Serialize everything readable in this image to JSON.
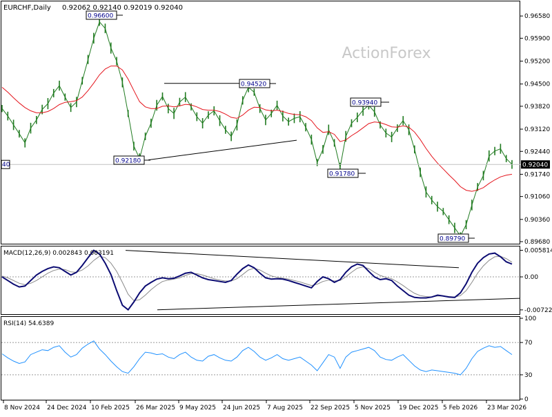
{
  "header": {
    "symbol": "EURCHF,Daily",
    "ohlc": "0.92062 0.92140 0.92019 0.92040",
    "watermark": "ActionForex"
  },
  "chart_data": [
    {
      "type": "line",
      "role": "price",
      "title": "EURCHF,Daily",
      "ylim": [
        0.8968,
        0.969
      ],
      "y_ticks": [
        "0.96580",
        "0.95900",
        "0.95200",
        "0.94500",
        "0.93820",
        "0.93120",
        "0.92440",
        "0.91740",
        "0.91060",
        "0.90360",
        "0.89680"
      ],
      "x_ticks": [
        "8 Nov 2024",
        "24 Dec 2024",
        "10 Feb 2025",
        "26 Mar 2025",
        "9 May 2025",
        "24 Jun 2025",
        "7 Aug 2025",
        "22 Sep 2025",
        "5 Nov 2025",
        "19 Dec 2025",
        "5 Feb 2026",
        "23 Mar 2026"
      ],
      "last_price_label": "0.92040",
      "left_price_label": "40",
      "annotations": [
        {
          "text": "0.96600",
          "x": "Feb 2025",
          "y": 0.966
        },
        {
          "text": "0.92180",
          "x": "Apr 2025",
          "y": 0.9218
        },
        {
          "text": "0.94520",
          "x": "Jul 2025",
          "y": 0.9452
        },
        {
          "text": "0.91780",
          "x": "Oct 2025",
          "y": 0.9178
        },
        {
          "text": "0.93940",
          "x": "Nov 2025",
          "y": 0.9394
        },
        {
          "text": "0.89790",
          "x": "Feb 2026",
          "y": 0.8979
        }
      ],
      "series": [
        {
          "role": "close",
          "color": "#1f7a1f",
          "values": [
            0.9375,
            0.9352,
            0.9325,
            0.9298,
            0.927,
            0.9315,
            0.934,
            0.9372,
            0.939,
            0.9422,
            0.9445,
            0.941,
            0.9378,
            0.9395,
            0.946,
            0.9525,
            0.959,
            0.964,
            0.962,
            0.956,
            0.952,
            0.9455,
            0.936,
            0.926,
            0.9222,
            0.929,
            0.933,
            0.9385,
            0.9412,
            0.9375,
            0.936,
            0.9395,
            0.941,
            0.938,
            0.935,
            0.933,
            0.9355,
            0.9368,
            0.9338,
            0.931,
            0.929,
            0.9325,
            0.94,
            0.944,
            0.9425,
            0.9375,
            0.934,
            0.936,
            0.9385,
            0.9352,
            0.9335,
            0.9345,
            0.935,
            0.9318,
            0.928,
            0.921,
            0.925,
            0.931,
            0.927,
            0.9195,
            0.929,
            0.933,
            0.9348,
            0.937,
            0.9385,
            0.9365,
            0.9325,
            0.93,
            0.9288,
            0.9315,
            0.9338,
            0.931,
            0.925,
            0.918,
            0.912,
            0.9095,
            0.9075,
            0.906,
            0.9035,
            0.901,
            0.8985,
            0.902,
            0.908,
            0.9135,
            0.917,
            0.923,
            0.9245,
            0.9252,
            0.9222,
            0.9204
          ]
        },
        {
          "role": "moving-average",
          "color": "#e4141c",
          "values": [
            0.944,
            0.9425,
            0.9408,
            0.9392,
            0.9378,
            0.9368,
            0.9362,
            0.9362,
            0.9366,
            0.9375,
            0.9387,
            0.9394,
            0.9396,
            0.9399,
            0.941,
            0.943,
            0.9453,
            0.9478,
            0.9496,
            0.9505,
            0.9505,
            0.9493,
            0.9465,
            0.943,
            0.9396,
            0.938,
            0.9375,
            0.9375,
            0.9382,
            0.9383,
            0.938,
            0.9383,
            0.9388,
            0.9386,
            0.938,
            0.9372,
            0.937,
            0.937,
            0.9366,
            0.9358,
            0.9348,
            0.9345,
            0.9355,
            0.937,
            0.9379,
            0.9378,
            0.9371,
            0.9368,
            0.937,
            0.9366,
            0.936,
            0.9357,
            0.9356,
            0.935,
            0.9338,
            0.9316,
            0.9302,
            0.9304,
            0.9296,
            0.9274,
            0.9279,
            0.9292,
            0.9303,
            0.9316,
            0.9329,
            0.9334,
            0.9332,
            0.9326,
            0.9319,
            0.9318,
            0.9322,
            0.9318,
            0.9303,
            0.928,
            0.9253,
            0.9229,
            0.9208,
            0.919,
            0.9172,
            0.9155,
            0.9136,
            0.9125,
            0.9122,
            0.9126,
            0.9133,
            0.9146,
            0.9157,
            0.9166,
            0.9171,
            0.9174
          ]
        }
      ],
      "trendlines": [
        {
          "from": [
            "Apr 2025",
            0.9218
          ],
          "to": [
            "Aug 2025",
            0.9278
          ]
        },
        {
          "from": [
            "Apr 2025",
            0.9452
          ],
          "to": [
            "Jul 2025",
            0.9452
          ]
        }
      ]
    },
    {
      "type": "line",
      "role": "macd",
      "title": "MACD(12,26,9) 0.002843 0.003191",
      "ylim": [
        -0.008,
        0.0065
      ],
      "y_ticks": [
        "0.005814",
        "0.00",
        "-0.007222"
      ],
      "series": [
        {
          "role": "macd",
          "color": "#0b0b72",
          "values": [
            0.0,
            -0.0008,
            -0.0016,
            -0.0022,
            -0.002,
            -0.0008,
            0.0004,
            0.0012,
            0.0018,
            0.0022,
            0.002,
            0.0012,
            0.0004,
            0.001,
            0.0025,
            0.0042,
            0.0058,
            0.005,
            0.003,
            0.0005,
            -0.003,
            -0.0062,
            -0.0072,
            -0.0055,
            -0.0035,
            -0.002,
            -0.0012,
            -0.0005,
            -0.0002,
            -0.0004,
            -0.0003,
            0.0002,
            0.0008,
            0.001,
            0.0004,
            -0.0002,
            -0.0006,
            -0.0008,
            -0.001,
            -0.0012,
            -0.0008,
            0.0006,
            0.0018,
            0.0026,
            0.002,
            0.0008,
            -0.0002,
            -0.0005,
            -0.0004,
            -0.0005,
            -0.0008,
            -0.0012,
            -0.0016,
            -0.002,
            -0.0024,
            -0.001,
            0.0,
            -0.0004,
            -0.0012,
            -0.0006,
            0.001,
            0.0022,
            0.0028,
            0.0025,
            0.0012,
            0.0,
            -0.0006,
            -0.0004,
            -0.0008,
            -0.002,
            -0.003,
            -0.004,
            -0.0045,
            -0.0046,
            -0.0046,
            -0.0044,
            -0.004,
            -0.0042,
            -0.0044,
            -0.0045,
            -0.0035,
            -0.0015,
            0.001,
            0.003,
            0.0042,
            0.005,
            0.0052,
            0.0044,
            0.0033,
            0.0028
          ]
        },
        {
          "role": "signal",
          "color": "#8a8a8a",
          "values": [
            0.0002,
            -0.0002,
            -0.0008,
            -0.0014,
            -0.0017,
            -0.0014,
            -0.0008,
            0.0,
            0.0008,
            0.0014,
            0.0017,
            0.0016,
            0.0011,
            0.001,
            0.0015,
            0.0024,
            0.0036,
            0.0045,
            0.0042,
            0.003,
            0.0012,
            -0.0012,
            -0.0038,
            -0.0052,
            -0.005,
            -0.004,
            -0.0028,
            -0.0018,
            -0.001,
            -0.0007,
            -0.0005,
            -0.0002,
            0.0003,
            0.0007,
            0.0007,
            0.0004,
            0.0,
            -0.0004,
            -0.0007,
            -0.0009,
            -0.0009,
            -0.0004,
            0.0005,
            0.0015,
            0.0019,
            0.0015,
            0.0008,
            0.0002,
            -0.0001,
            -0.0003,
            -0.0005,
            -0.0008,
            -0.0011,
            -0.0015,
            -0.0019,
            -0.0016,
            -0.001,
            -0.0007,
            -0.0009,
            -0.0008,
            0.0,
            0.001,
            0.0019,
            0.0022,
            0.0018,
            0.001,
            0.0003,
            -0.0001,
            -0.0004,
            -0.0011,
            -0.0019,
            -0.0028,
            -0.0036,
            -0.0041,
            -0.0043,
            -0.0044,
            -0.0042,
            -0.0042,
            -0.0043,
            -0.0044,
            -0.0041,
            -0.003,
            -0.0012,
            0.0008,
            0.0024,
            0.0036,
            0.0044,
            0.0045,
            0.004,
            0.0032
          ]
        }
      ],
      "trendlines": [
        {
          "from": [
            "Mar 2025",
            0.0058
          ],
          "to": [
            "Feb 2026",
            0.002
          ]
        },
        {
          "from": [
            "Apr 2025",
            -0.0072
          ],
          "to": [
            "Apr 2026",
            -0.0047
          ]
        }
      ]
    },
    {
      "type": "line",
      "role": "rsi",
      "title": "RSI(14) 54.6389",
      "ylim": [
        0,
        100
      ],
      "y_ticks": [
        "100",
        "70",
        "30",
        "0"
      ],
      "levels": [
        70,
        30
      ],
      "series": [
        {
          "role": "rsi",
          "color": "#1e90ff",
          "values": [
            56,
            51,
            47,
            44,
            46,
            55,
            58,
            61,
            60,
            64,
            66,
            58,
            52,
            55,
            63,
            68,
            72,
            62,
            55,
            47,
            40,
            34,
            32,
            40,
            50,
            58,
            57,
            55,
            56,
            52,
            50,
            55,
            58,
            52,
            48,
            47,
            53,
            55,
            51,
            48,
            47,
            52,
            60,
            64,
            59,
            52,
            48,
            51,
            55,
            50,
            48,
            50,
            52,
            47,
            42,
            35,
            45,
            55,
            52,
            38,
            52,
            58,
            60,
            62,
            64,
            60,
            52,
            49,
            48,
            52,
            55,
            48,
            41,
            36,
            34,
            36,
            35,
            34,
            33,
            32,
            30,
            38,
            50,
            59,
            63,
            66,
            64,
            65,
            60,
            55
          ]
        }
      ]
    }
  ]
}
